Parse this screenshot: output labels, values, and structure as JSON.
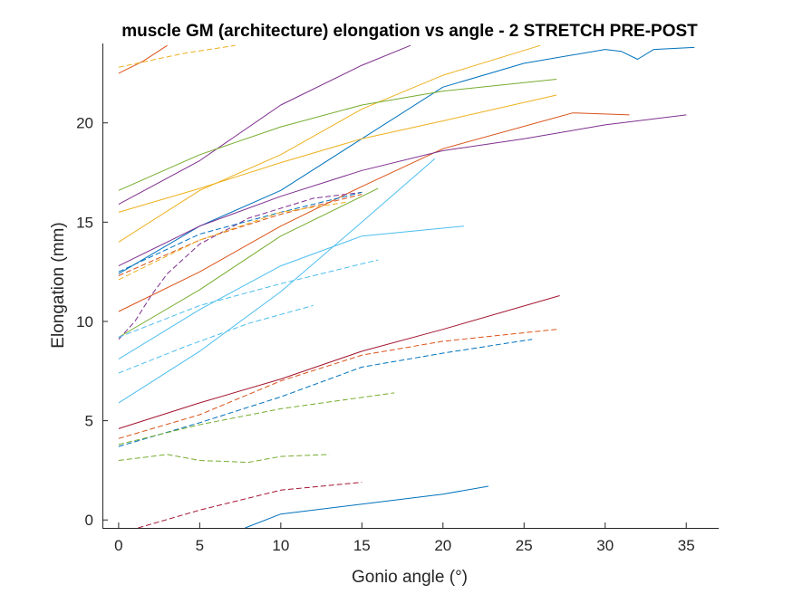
{
  "chart_data": {
    "type": "line",
    "title": "muscle GM (architecture) elongation vs angle - 2 STRETCH PRE-POST",
    "xlabel": "Gonio angle (°)",
    "ylabel": "Elongation (mm)",
    "xlim": [
      -1,
      37
    ],
    "ylim": [
      -0.4,
      24.0
    ],
    "xticks": [
      0,
      5,
      10,
      15,
      20,
      25,
      30,
      35
    ],
    "yticks": [
      0,
      5,
      10,
      15,
      20
    ],
    "grid": false,
    "legend": "none",
    "series": [
      {
        "color": "#0072BD",
        "style": "solid",
        "x": [
          0,
          5,
          10,
          15,
          20,
          25,
          30,
          31,
          32,
          33,
          35.5
        ],
        "y": [
          12.4,
          14.8,
          16.6,
          19.2,
          21.8,
          23.0,
          23.7,
          23.6,
          23.2,
          23.7,
          23.8
        ]
      },
      {
        "color": "#D95319",
        "style": "solid",
        "x": [
          0,
          1.5,
          3
        ],
        "y": [
          22.5,
          23.1,
          23.9
        ]
      },
      {
        "color": "#EDB120",
        "style": "solid",
        "x": [
          0,
          5,
          10,
          15,
          20,
          26
        ],
        "y": [
          14.0,
          16.6,
          18.4,
          20.7,
          22.4,
          23.9
        ]
      },
      {
        "color": "#7E2F8E",
        "style": "solid",
        "x": [
          0,
          5,
          10,
          15,
          18
        ],
        "y": [
          15.9,
          18.1,
          20.9,
          22.9,
          23.9
        ]
      },
      {
        "color": "#77AC30",
        "style": "solid",
        "x": [
          0,
          5,
          10,
          15,
          20,
          27
        ],
        "y": [
          16.6,
          18.4,
          19.8,
          20.9,
          21.6,
          22.2
        ]
      },
      {
        "color": "#EDB120",
        "style": "solid",
        "x": [
          0,
          5,
          10,
          15,
          20,
          27
        ],
        "y": [
          15.5,
          16.7,
          18.0,
          19.2,
          20.1,
          21.4
        ]
      },
      {
        "color": "#D95319",
        "style": "solid",
        "x": [
          0,
          5,
          10,
          15,
          20,
          28,
          31.5
        ],
        "y": [
          10.5,
          12.5,
          14.8,
          16.8,
          18.7,
          20.5,
          20.4
        ]
      },
      {
        "color": "#7E2F8E",
        "style": "solid",
        "x": [
          0,
          5,
          10,
          15,
          20,
          25,
          30,
          35
        ],
        "y": [
          12.8,
          14.8,
          16.3,
          17.6,
          18.6,
          19.2,
          19.9,
          20.4
        ]
      },
      {
        "color": "#4DBEEE",
        "style": "solid",
        "x": [
          0,
          5,
          10,
          15,
          19.5
        ],
        "y": [
          5.9,
          8.5,
          11.5,
          15.0,
          18.2
        ]
      },
      {
        "color": "#77AC30",
        "style": "solid",
        "x": [
          0,
          5,
          10,
          16
        ],
        "y": [
          9.2,
          11.6,
          14.3,
          16.7
        ]
      },
      {
        "color": "#4DBEEE",
        "style": "solid",
        "x": [
          0,
          5,
          10,
          15,
          21.3
        ],
        "y": [
          8.1,
          10.6,
          12.8,
          14.3,
          14.8
        ]
      },
      {
        "color": "#A2142F",
        "style": "solid",
        "x": [
          0,
          5,
          10,
          15,
          20,
          27.2
        ],
        "y": [
          4.6,
          5.9,
          7.1,
          8.5,
          9.6,
          11.3
        ]
      },
      {
        "color": "#0072BD",
        "style": "solid",
        "x": [
          7.8,
          10,
          15,
          20,
          22.8
        ],
        "y": [
          -0.4,
          0.3,
          0.8,
          1.3,
          1.7
        ]
      },
      {
        "color": "#EDB120",
        "style": "dashed",
        "x": [
          0,
          4,
          7.2
        ],
        "y": [
          22.8,
          23.5,
          23.9
        ]
      },
      {
        "color": "#7E2F8E",
        "style": "dashed",
        "x": [
          0,
          1,
          2,
          3,
          5,
          8,
          12,
          15
        ],
        "y": [
          9.1,
          10.0,
          11.3,
          12.4,
          13.9,
          15.2,
          16.2,
          16.5
        ]
      },
      {
        "color": "#0072BD",
        "style": "dashed",
        "x": [
          0,
          5,
          10,
          15
        ],
        "y": [
          12.5,
          14.4,
          15.5,
          16.5
        ]
      },
      {
        "color": "#D95319",
        "style": "dashed",
        "x": [
          0,
          5,
          10,
          15
        ],
        "y": [
          12.3,
          14.1,
          15.4,
          16.4
        ]
      },
      {
        "color": "#EDB120",
        "style": "dashed",
        "x": [
          0,
          5,
          10,
          14
        ],
        "y": [
          12.1,
          14.1,
          15.5,
          16.0
        ]
      },
      {
        "color": "#4DBEEE",
        "style": "dashed",
        "x": [
          0,
          5,
          10,
          16
        ],
        "y": [
          9.2,
          10.8,
          11.9,
          13.1
        ]
      },
      {
        "color": "#4DBEEE",
        "style": "dashed",
        "x": [
          0,
          4,
          8,
          12
        ],
        "y": [
          7.4,
          8.7,
          9.9,
          10.8
        ]
      },
      {
        "color": "#D95319",
        "style": "dashed",
        "x": [
          0,
          5,
          10,
          15,
          20,
          27
        ],
        "y": [
          4.1,
          5.3,
          7.0,
          8.3,
          9.0,
          9.6
        ]
      },
      {
        "color": "#0072BD",
        "style": "dashed",
        "x": [
          0,
          5,
          10,
          15,
          20,
          25.5
        ],
        "y": [
          3.7,
          4.9,
          6.2,
          7.7,
          8.4,
          9.1
        ]
      },
      {
        "color": "#77AC30",
        "style": "dashed",
        "x": [
          0,
          5,
          10,
          17
        ],
        "y": [
          3.8,
          4.8,
          5.6,
          6.4
        ]
      },
      {
        "color": "#77AC30",
        "style": "dashed",
        "x": [
          0,
          3,
          5,
          8,
          10,
          13
        ],
        "y": [
          3.0,
          3.3,
          3.0,
          2.9,
          3.2,
          3.3
        ]
      },
      {
        "color": "#A2142F",
        "style": "dashed",
        "x": [
          1.2,
          5,
          10,
          15
        ],
        "y": [
          -0.4,
          0.5,
          1.5,
          1.9
        ]
      }
    ]
  }
}
